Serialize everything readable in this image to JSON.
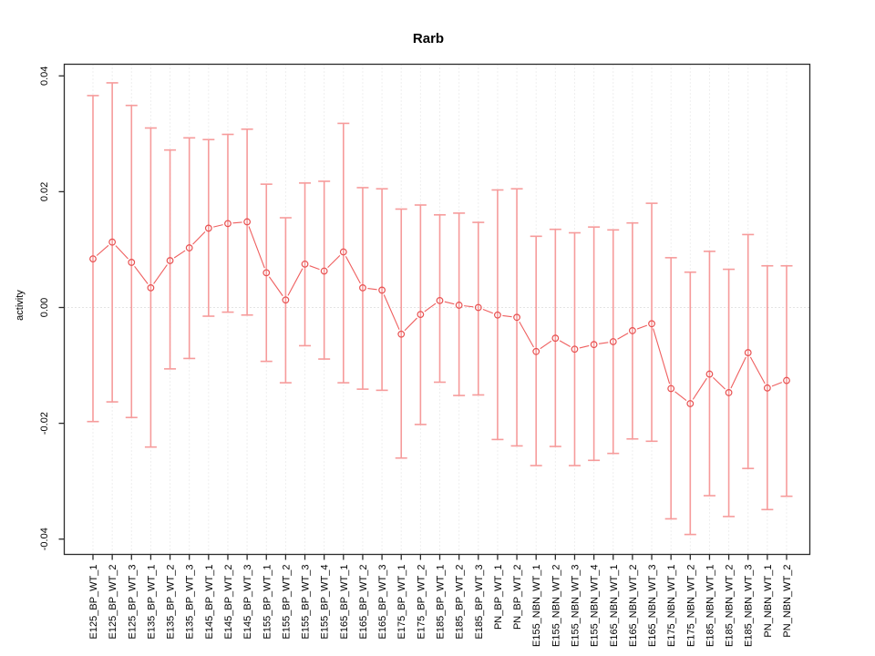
{
  "chart_data": {
    "type": "pointrange",
    "title": "Rarb",
    "xlabel": "",
    "ylabel": "activity",
    "ylim": [
      -0.042,
      0.042
    ],
    "ytick_values": [
      -0.04,
      -0.02,
      0.0,
      0.02,
      0.04
    ],
    "ytick_labels": [
      "-0.04",
      "-0.02",
      "0.00",
      "0.02",
      "0.04"
    ],
    "grid": "vertical-dotted-per-category",
    "zero_line": true,
    "legend": "none",
    "categories": [
      "E125_BP_WT_1",
      "E125_BP_WT_2",
      "E125_BP_WT_3",
      "E135_BP_WT_1",
      "E135_BP_WT_2",
      "E135_BP_WT_3",
      "E145_BP_WT_1",
      "E145_BP_WT_2",
      "E145_BP_WT_3",
      "E155_BP_WT_1",
      "E155_BP_WT_2",
      "E155_BP_WT_3",
      "E155_BP_WT_4",
      "E165_BP_WT_1",
      "E165_BP_WT_2",
      "E165_BP_WT_3",
      "E175_BP_WT_1",
      "E175_BP_WT_2",
      "E185_BP_WT_1",
      "E185_BP_WT_2",
      "E185_BP_WT_3",
      "PN_BP_WT_1",
      "PN_BP_WT_2",
      "E155_NBN_WT_1",
      "E155_NBN_WT_2",
      "E155_NBN_WT_3",
      "E155_NBN_WT_4",
      "E165_NBN_WT_1",
      "E165_NBN_WT_2",
      "E165_NBN_WT_3",
      "E175_NBN_WT_1",
      "E175_NBN_WT_2",
      "E185_NBN_WT_1",
      "E185_NBN_WT_2",
      "E185_NBN_WT_3",
      "PN_NBN_WT_1",
      "PN_NBN_WT_2"
    ],
    "series": [
      {
        "name": "activity",
        "center": [
          0.0084,
          0.0113,
          0.0078,
          0.0034,
          0.0081,
          0.0103,
          0.0137,
          0.0145,
          0.0148,
          0.006,
          0.0013,
          0.0075,
          0.0063,
          0.0096,
          0.0034,
          0.003,
          -0.0046,
          -0.0012,
          0.0012,
          0.0004,
          0.0,
          -0.0013,
          -0.0017,
          -0.0076,
          -0.0053,
          -0.0072,
          -0.0064,
          -0.0059,
          -0.004,
          -0.0028,
          -0.014,
          -0.0166,
          -0.0115,
          -0.0147,
          -0.0078,
          -0.0139,
          -0.0126
        ],
        "lower": [
          -0.0197,
          -0.0163,
          -0.019,
          -0.0241,
          -0.0106,
          -0.0088,
          -0.0015,
          -0.0008,
          -0.0013,
          -0.0093,
          -0.013,
          -0.0066,
          -0.0089,
          -0.013,
          -0.0141,
          -0.0143,
          -0.026,
          -0.0202,
          -0.0129,
          -0.0152,
          -0.0151,
          -0.0228,
          -0.0239,
          -0.0273,
          -0.024,
          -0.0273,
          -0.0264,
          -0.0252,
          -0.0227,
          -0.0231,
          -0.0365,
          -0.0392,
          -0.0325,
          -0.0361,
          -0.0278,
          -0.0349,
          -0.0326
        ],
        "upper": [
          0.0366,
          0.0388,
          0.0349,
          0.031,
          0.0272,
          0.0293,
          0.029,
          0.0299,
          0.0308,
          0.0213,
          0.0155,
          0.0215,
          0.0218,
          0.0318,
          0.0207,
          0.0205,
          0.017,
          0.0177,
          0.016,
          0.0163,
          0.0147,
          0.0203,
          0.0205,
          0.0123,
          0.0135,
          0.0129,
          0.0139,
          0.0134,
          0.0146,
          0.018,
          0.0086,
          0.0061,
          0.0097,
          0.0066,
          0.0126,
          0.0072,
          0.0072
        ]
      }
    ],
    "colors": {
      "error_bar": "#f69b9b",
      "connector_line": "#ef5f5f",
      "marker": "#e85151",
      "gridline": "#dedede",
      "zero_line": "#c9c9c9",
      "axis": "#2b2b2b",
      "text": "#000000",
      "background": "#ffffff"
    }
  }
}
